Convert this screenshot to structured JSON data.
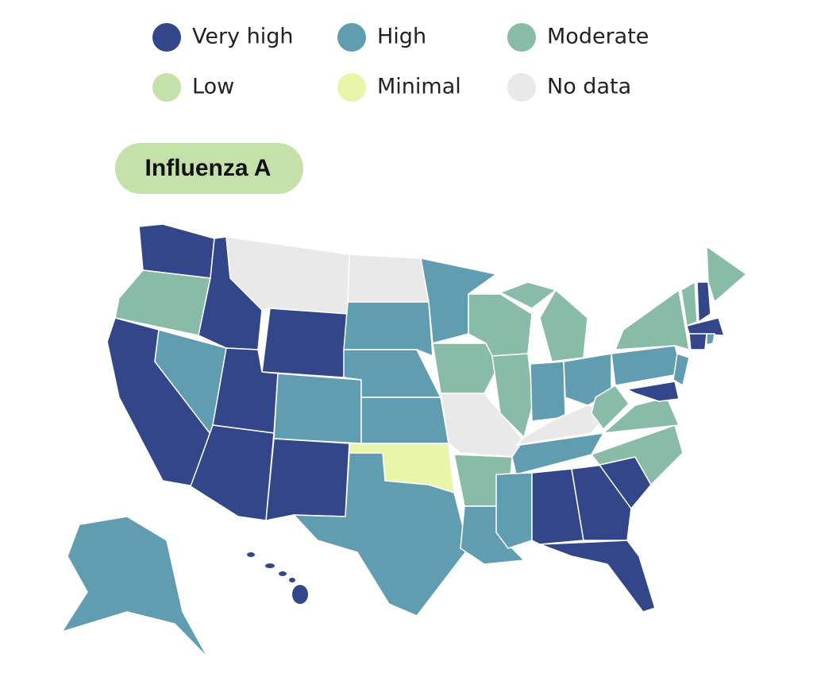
{
  "title": "Influenza A",
  "legend": [
    {
      "name": "Very high",
      "color": "#33468a"
    },
    {
      "name": "High",
      "color": "#609db0"
    },
    {
      "name": "Moderate",
      "color": "#88bba8"
    },
    {
      "name": "Low",
      "color": "#c4e1a9"
    },
    {
      "name": "Minimal",
      "color": "#e9f6a9"
    },
    {
      "name": "No data",
      "color": "#e9e9e9"
    }
  ]
}
